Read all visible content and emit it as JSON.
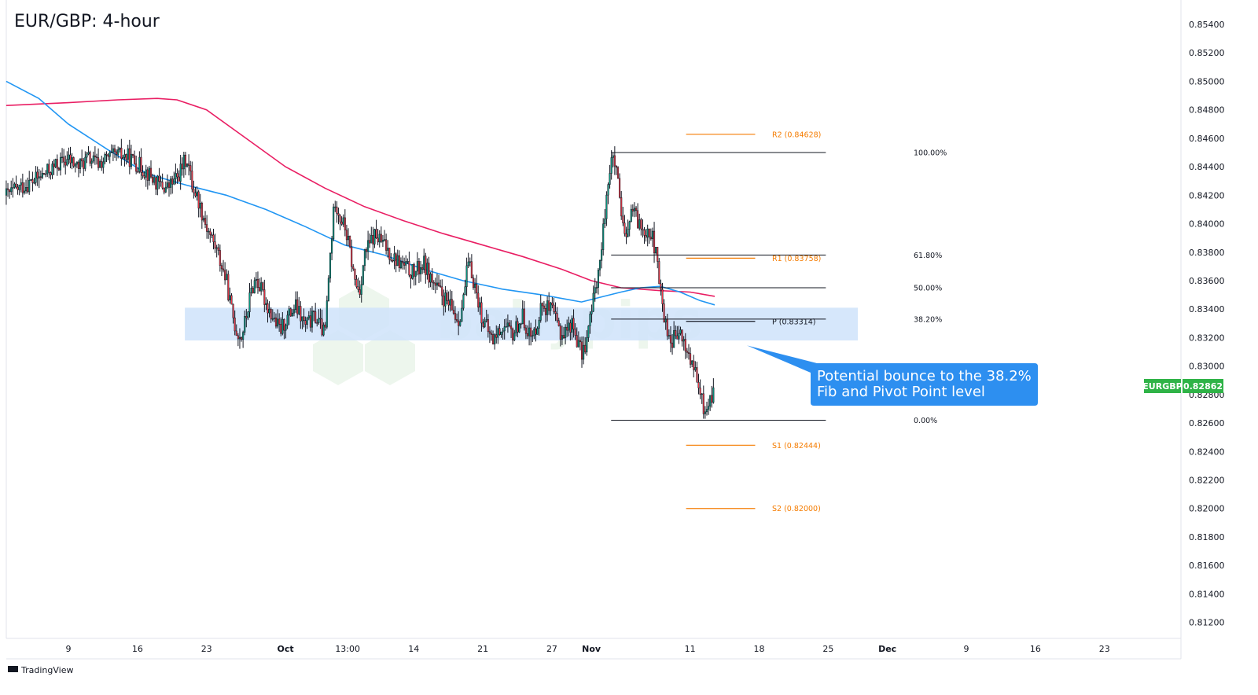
{
  "chart_data": {
    "type": "candlestick",
    "title": "EUR/GBP: 4-hour",
    "xlabel": "",
    "ylabel": "",
    "ylim": [
      0.8104,
      0.8556
    ],
    "y_ticks": [
      "0.85400",
      "0.85200",
      "0.85000",
      "0.84800",
      "0.84600",
      "0.84400",
      "0.84200",
      "0.84000",
      "0.83800",
      "0.83600",
      "0.83400",
      "0.83200",
      "0.83000",
      "0.82800",
      "0.82600",
      "0.82400",
      "0.82200",
      "0.82000",
      "0.81800",
      "0.81600",
      "0.81400",
      "0.81200"
    ],
    "x_ticks": [
      {
        "label": "9",
        "day": 0
      },
      {
        "label": "16",
        "day": 7
      },
      {
        "label": "23",
        "day": 14
      },
      {
        "label": "Oct",
        "day": 22
      },
      {
        "label": "13:00",
        "day": 28.3
      },
      {
        "label": "14",
        "day": 35
      },
      {
        "label": "21",
        "day": 42
      },
      {
        "label": "27",
        "day": 49
      },
      {
        "label": "Nov",
        "day": 53
      },
      {
        "label": "11",
        "day": 63
      },
      {
        "label": "18",
        "day": 70
      },
      {
        "label": "25",
        "day": 77
      },
      {
        "label": "Dec",
        "day": 83
      },
      {
        "label": "9",
        "day": 91
      },
      {
        "label": "16",
        "day": 98
      },
      {
        "label": "23",
        "day": 105
      }
    ],
    "price_path": [
      [
        -6.3,
        0.842
      ],
      [
        -5,
        0.8425
      ],
      [
        -3,
        0.8432
      ],
      [
        -1,
        0.8442
      ],
      [
        0,
        0.8445
      ],
      [
        1,
        0.844
      ],
      [
        2,
        0.8446
      ],
      [
        3,
        0.8442
      ],
      [
        4,
        0.8446
      ],
      [
        5,
        0.8448
      ],
      [
        6,
        0.8447
      ],
      [
        7,
        0.8442
      ],
      [
        8,
        0.8436
      ],
      [
        9,
        0.8428
      ],
      [
        10,
        0.8425
      ],
      [
        11,
        0.8432
      ],
      [
        12,
        0.8447
      ],
      [
        12.5,
        0.8428
      ],
      [
        13,
        0.842
      ],
      [
        14,
        0.8398
      ],
      [
        15,
        0.8382
      ],
      [
        16,
        0.836
      ],
      [
        16.5,
        0.834
      ],
      [
        17,
        0.8325
      ],
      [
        17.5,
        0.832
      ],
      [
        18,
        0.8334
      ],
      [
        18.5,
        0.8352
      ],
      [
        19,
        0.8362
      ],
      [
        20,
        0.8345
      ],
      [
        21,
        0.833
      ],
      [
        21.5,
        0.8325
      ],
      [
        22,
        0.8332
      ],
      [
        23,
        0.8342
      ],
      [
        24,
        0.8328
      ],
      [
        25,
        0.8335
      ],
      [
        26,
        0.8322
      ],
      [
        26.5,
        0.8375
      ],
      [
        27,
        0.8418
      ],
      [
        27.5,
        0.8405
      ],
      [
        28,
        0.8398
      ],
      [
        28.5,
        0.8382
      ],
      [
        29,
        0.836
      ],
      [
        29.5,
        0.8352
      ],
      [
        30,
        0.8378
      ],
      [
        31,
        0.8392
      ],
      [
        32,
        0.8385
      ],
      [
        33,
        0.8376
      ],
      [
        34,
        0.837
      ],
      [
        35,
        0.8365
      ],
      [
        36,
        0.8372
      ],
      [
        37,
        0.8358
      ],
      [
        38,
        0.8348
      ],
      [
        39,
        0.8338
      ],
      [
        39.5,
        0.8332
      ],
      [
        40,
        0.8345
      ],
      [
        40.5,
        0.8372
      ],
      [
        41,
        0.8362
      ],
      [
        42,
        0.8332
      ],
      [
        43,
        0.8318
      ],
      [
        44,
        0.8328
      ],
      [
        45,
        0.8322
      ],
      [
        46,
        0.8335
      ],
      [
        47,
        0.8318
      ],
      [
        48,
        0.8344
      ],
      [
        49,
        0.8338
      ],
      [
        50,
        0.8322
      ],
      [
        51,
        0.833
      ],
      [
        51.5,
        0.832
      ],
      [
        52,
        0.8308
      ],
      [
        52.5,
        0.8318
      ],
      [
        53,
        0.8338
      ],
      [
        53.5,
        0.836
      ],
      [
        54,
        0.8378
      ],
      [
        54.5,
        0.842
      ],
      [
        55,
        0.8445
      ],
      [
        55.5,
        0.844
      ],
      [
        56,
        0.8405
      ],
      [
        56.5,
        0.8385
      ],
      [
        57,
        0.841
      ],
      [
        58,
        0.8398
      ],
      [
        59,
        0.8395
      ],
      [
        59.5,
        0.838
      ],
      [
        60,
        0.8352
      ],
      [
        60.5,
        0.833
      ],
      [
        61,
        0.8318
      ],
      [
        62,
        0.8322
      ],
      [
        63,
        0.8305
      ],
      [
        63.5,
        0.8295
      ],
      [
        64,
        0.828
      ],
      [
        64.5,
        0.8268
      ],
      [
        65,
        0.8275
      ],
      [
        65.5,
        0.8286
      ]
    ],
    "current_price": {
      "symbol": "EURGBP",
      "value": "0.82862",
      "color": "#089981"
    },
    "moving_averages": [
      {
        "color": "#e91e63",
        "points": [
          [
            -6.3,
            0.8483
          ],
          [
            0,
            0.8485
          ],
          [
            5,
            0.8487
          ],
          [
            9,
            0.8488
          ],
          [
            11,
            0.8487
          ],
          [
            14,
            0.848
          ],
          [
            18,
            0.846
          ],
          [
            22,
            0.844
          ],
          [
            26,
            0.8425
          ],
          [
            30,
            0.8412
          ],
          [
            34,
            0.8402
          ],
          [
            38,
            0.8393
          ],
          [
            42,
            0.8385
          ],
          [
            46,
            0.8377
          ],
          [
            50,
            0.8368
          ],
          [
            53,
            0.836
          ],
          [
            56,
            0.8355
          ],
          [
            60,
            0.8353
          ],
          [
            63,
            0.8352
          ],
          [
            65.5,
            0.8349
          ]
        ]
      },
      {
        "color": "#2196f3",
        "points": [
          [
            -6.3,
            0.85
          ],
          [
            -3,
            0.8488
          ],
          [
            0,
            0.847
          ],
          [
            4,
            0.8452
          ],
          [
            8,
            0.8435
          ],
          [
            12,
            0.8427
          ],
          [
            16,
            0.842
          ],
          [
            20,
            0.841
          ],
          [
            24,
            0.8398
          ],
          [
            28,
            0.8385
          ],
          [
            32,
            0.8378
          ],
          [
            36,
            0.8368
          ],
          [
            40,
            0.836
          ],
          [
            44,
            0.8354
          ],
          [
            48,
            0.835
          ],
          [
            52,
            0.8345
          ],
          [
            56,
            0.8352
          ],
          [
            58,
            0.8355
          ],
          [
            60,
            0.8356
          ],
          [
            62,
            0.8352
          ],
          [
            64,
            0.8346
          ],
          [
            65.5,
            0.8343
          ]
        ]
      }
    ],
    "zone": {
      "from": 0.8318,
      "to": 0.8341,
      "day_start": 11.8,
      "day_end": 80.0,
      "color": "#cfe3fa"
    },
    "fib_levels": [
      {
        "label": "100.00%",
        "value": 0.845
      },
      {
        "label": "61.80%",
        "value": 0.8378
      },
      {
        "label": "50.00%",
        "value": 0.8355
      },
      {
        "label": "38.20%",
        "value": 0.8333
      },
      {
        "label": "0.00%",
        "value": 0.8262
      }
    ],
    "fib_range": {
      "day_start": 55.0,
      "day_end": 77.0,
      "color": "#131722"
    },
    "pivot_levels": [
      {
        "label": "R2 (0.84628)",
        "value": 0.84628,
        "color": "#f57c00"
      },
      {
        "label": "R1 (0.83758)",
        "value": 0.83758,
        "color": "#f57c00"
      },
      {
        "label": "P (0.83314)",
        "value": 0.83314,
        "color": "#131722"
      },
      {
        "label": "S1 (0.82444)",
        "value": 0.82444,
        "color": "#f57c00"
      },
      {
        "label": "S2 (0.82000)",
        "value": 0.82,
        "color": "#f57c00"
      }
    ],
    "pivot_range": {
      "day_start": 62.6,
      "day_end": 69.6
    },
    "annotation": {
      "lines": [
        "Potential bounce to the 38.2%",
        "Fib and Pivot Point level"
      ],
      "color": "#2d8ff0",
      "pointer_day": 69.0,
      "pointer_value": 0.832
    },
    "colors": {
      "up": "#089981",
      "down": "#f23645",
      "candle": "#131722"
    }
  },
  "watermark": "babypips",
  "branding": "TradingView"
}
